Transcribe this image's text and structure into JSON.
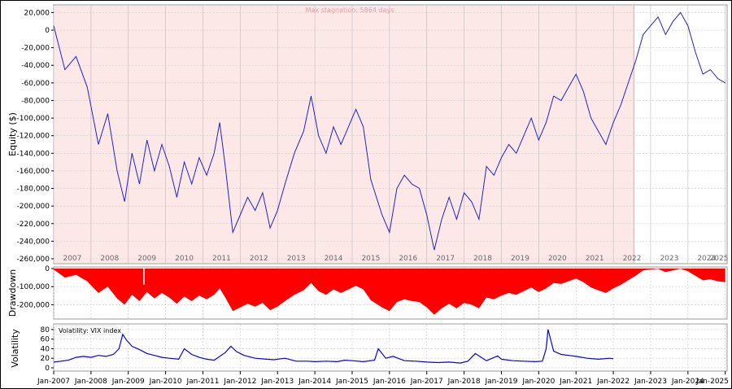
{
  "chart_data": [
    {
      "type": "line",
      "panel": "equity",
      "ylabel": "Equity ($)",
      "ylim": [
        -260000,
        25000
      ],
      "yticks": [
        "20,000",
        "0",
        "-20,000",
        "-40,000",
        "-60,000",
        "-80,000",
        "-100,000",
        "-120,000",
        "-140,000",
        "-160,000",
        "-180,000",
        "-200,000",
        "-220,000",
        "-240,000",
        "-260,000"
      ],
      "ytick_values": [
        20000,
        0,
        -20000,
        -40000,
        -60000,
        -80000,
        -100000,
        -120000,
        -140000,
        -160000,
        -180000,
        -200000,
        -220000,
        -240000,
        -260000
      ],
      "year_labels": [
        "2007",
        "2008",
        "2009",
        "2010",
        "2011",
        "2012",
        "2013",
        "2014",
        "2015",
        "2016",
        "2017",
        "2018",
        "2019",
        "2020",
        "2021",
        "2022",
        "2023",
        "2024",
        "2025"
      ],
      "annotation": "Max stagnation: 5864 days",
      "stagnation_range": [
        2007.0,
        2022.55
      ],
      "stagnation_color": "#fde8e8",
      "line_color": "#2222cc",
      "x": [
        2007.0,
        2007.3,
        2007.6,
        2007.9,
        2008.2,
        2008.45,
        2008.7,
        2008.9,
        2009.1,
        2009.3,
        2009.5,
        2009.7,
        2009.9,
        2010.1,
        2010.3,
        2010.5,
        2010.7,
        2010.9,
        2011.1,
        2011.3,
        2011.45,
        2011.6,
        2011.8,
        2012.0,
        2012.2,
        2012.4,
        2012.6,
        2012.8,
        2013.0,
        2013.2,
        2013.45,
        2013.7,
        2013.9,
        2014.1,
        2014.3,
        2014.5,
        2014.7,
        2014.9,
        2015.1,
        2015.3,
        2015.5,
        2015.8,
        2016.0,
        2016.2,
        2016.4,
        2016.6,
        2016.8,
        2017.0,
        2017.2,
        2017.4,
        2017.6,
        2017.8,
        2018.0,
        2018.2,
        2018.4,
        2018.6,
        2018.8,
        2019.0,
        2019.2,
        2019.4,
        2019.6,
        2019.8,
        2020.0,
        2020.2,
        2020.4,
        2020.6,
        2020.8,
        2021.0,
        2021.2,
        2021.4,
        2021.6,
        2021.8,
        2022.0,
        2022.2,
        2022.4,
        2022.6,
        2022.8,
        2023.0,
        2023.2,
        2023.4,
        2023.6,
        2023.8,
        2024.0,
        2024.2,
        2024.4,
        2024.6,
        2024.8,
        2025.0
      ],
      "y": [
        5000,
        -45000,
        -30000,
        -65000,
        -130000,
        -95000,
        -160000,
        -195000,
        -140000,
        -175000,
        -125000,
        -160000,
        -130000,
        -155000,
        -190000,
        -150000,
        -175000,
        -145000,
        -165000,
        -140000,
        -105000,
        -155000,
        -230000,
        -210000,
        -190000,
        -205000,
        -185000,
        -225000,
        -205000,
        -175000,
        -140000,
        -115000,
        -75000,
        -120000,
        -140000,
        -110000,
        -130000,
        -110000,
        -90000,
        -110000,
        -170000,
        -210000,
        -230000,
        -180000,
        -165000,
        -175000,
        -180000,
        -210000,
        -250000,
        -215000,
        -190000,
        -215000,
        -185000,
        -195000,
        -215000,
        -155000,
        -165000,
        -145000,
        -130000,
        -140000,
        -120000,
        -100000,
        -125000,
        -105000,
        -75000,
        -80000,
        -65000,
        -50000,
        -70000,
        -100000,
        -115000,
        -130000,
        -105000,
        -85000,
        -60000,
        -35000,
        -5000,
        5000,
        15000,
        -5000,
        10000,
        20000,
        5000,
        -25000,
        -50000,
        -45000,
        -55000,
        -60000
      ]
    },
    {
      "type": "area",
      "panel": "drawdown",
      "ylabel": "Drawdown",
      "ylim": [
        -270000,
        0
      ],
      "yticks": [
        "0",
        "-100,000",
        "-200,000"
      ],
      "ytick_values": [
        0,
        -100000,
        -200000
      ],
      "fill_color": "#ff0000",
      "x": [
        2007.0,
        2007.3,
        2007.6,
        2007.9,
        2008.2,
        2008.45,
        2008.7,
        2008.9,
        2009.1,
        2009.3,
        2009.5,
        2009.7,
        2009.9,
        2010.1,
        2010.3,
        2010.5,
        2010.7,
        2010.9,
        2011.1,
        2011.3,
        2011.45,
        2011.6,
        2011.8,
        2012.0,
        2012.2,
        2012.4,
        2012.6,
        2012.8,
        2013.0,
        2013.2,
        2013.45,
        2013.7,
        2013.9,
        2014.1,
        2014.3,
        2014.5,
        2014.7,
        2014.9,
        2015.1,
        2015.3,
        2015.5,
        2015.8,
        2016.0,
        2016.2,
        2016.4,
        2016.6,
        2016.8,
        2017.0,
        2017.2,
        2017.4,
        2017.6,
        2017.8,
        2018.0,
        2018.2,
        2018.4,
        2018.6,
        2018.8,
        2019.0,
        2019.2,
        2019.4,
        2019.6,
        2019.8,
        2020.0,
        2020.2,
        2020.4,
        2020.6,
        2020.8,
        2021.0,
        2021.2,
        2021.4,
        2021.6,
        2021.8,
        2022.0,
        2022.2,
        2022.4,
        2022.6,
        2022.8,
        2023.0,
        2023.2,
        2023.4,
        2023.6,
        2023.8,
        2024.0,
        2024.2,
        2024.4,
        2024.6,
        2024.8,
        2025.0
      ],
      "y": [
        -5000,
        -50000,
        -35000,
        -70000,
        -135000,
        -100000,
        -165000,
        -200000,
        -145000,
        -180000,
        -130000,
        -165000,
        -135000,
        -160000,
        -195000,
        -155000,
        -180000,
        -150000,
        -170000,
        -145000,
        -110000,
        -160000,
        -235000,
        -215000,
        -195000,
        -210000,
        -190000,
        -230000,
        -210000,
        -180000,
        -145000,
        -120000,
        -80000,
        -125000,
        -145000,
        -115000,
        -135000,
        -115000,
        -95000,
        -115000,
        -175000,
        -215000,
        -235000,
        -185000,
        -170000,
        -180000,
        -185000,
        -215000,
        -255000,
        -220000,
        -195000,
        -220000,
        -190000,
        -200000,
        -220000,
        -160000,
        -170000,
        -150000,
        -135000,
        -145000,
        -125000,
        -105000,
        -130000,
        -110000,
        -80000,
        -85000,
        -70000,
        -55000,
        -75000,
        -105000,
        -120000,
        -135000,
        -110000,
        -90000,
        -65000,
        -40000,
        -10000,
        -5000,
        -2000,
        -20000,
        -10000,
        -1000,
        -15000,
        -40000,
        -65000,
        -60000,
        -70000,
        -75000
      ]
    },
    {
      "type": "line",
      "panel": "volatility",
      "ylabel": "Volatility",
      "legend": "Volatility: VIX index",
      "ylim": [
        0,
        85
      ],
      "yticks": [
        "80",
        "60",
        "40",
        "20",
        "0"
      ],
      "ytick_values": [
        80,
        60,
        40,
        20,
        0
      ],
      "line_color": "#0000ee",
      "xticks": [
        "Jan-2007",
        "Jan-2008",
        "Jan-2009",
        "Jan-2010",
        "Jan-2011",
        "Jan-2012",
        "Jan-2013",
        "Jan-2014",
        "Jan-2015",
        "Jan-2016",
        "Jan-2017",
        "Jan-2018",
        "Jan-2019",
        "Jan-2020",
        "Jan-2021",
        "Jan-2022",
        "Jan-2023",
        "Jan-2024",
        "Jan-2025"
      ],
      "x": [
        2007.0,
        2007.2,
        2007.4,
        2007.6,
        2007.8,
        2008.0,
        2008.2,
        2008.4,
        2008.6,
        2008.75,
        2008.85,
        2008.95,
        2009.1,
        2009.3,
        2009.5,
        2009.7,
        2009.9,
        2010.1,
        2010.35,
        2010.5,
        2010.7,
        2010.9,
        2011.1,
        2011.3,
        2011.6,
        2011.75,
        2011.9,
        2012.1,
        2012.4,
        2012.7,
        2012.9,
        2013.2,
        2013.5,
        2013.8,
        2014.0,
        2014.3,
        2014.6,
        2014.8,
        2015.0,
        2015.3,
        2015.6,
        2015.7,
        2015.9,
        2016.1,
        2016.4,
        2016.7,
        2017.0,
        2017.3,
        2017.6,
        2017.9,
        2018.1,
        2018.3,
        2018.6,
        2018.9,
        2019.0,
        2019.3,
        2019.6,
        2019.9,
        2020.1,
        2020.2,
        2020.25,
        2020.4,
        2020.6,
        2020.8,
        2021.0,
        2021.3,
        2021.6,
        2021.9,
        2022.0
      ],
      "y": [
        12,
        14,
        16,
        22,
        24,
        22,
        26,
        24,
        28,
        40,
        70,
        58,
        45,
        38,
        30,
        26,
        22,
        20,
        18,
        40,
        28,
        22,
        18,
        16,
        32,
        45,
        34,
        26,
        20,
        18,
        17,
        20,
        14,
        14,
        13,
        14,
        13,
        16,
        15,
        13,
        16,
        40,
        20,
        24,
        15,
        14,
        12,
        11,
        12,
        10,
        14,
        30,
        15,
        25,
        18,
        15,
        14,
        13,
        14,
        40,
        80,
        35,
        28,
        26,
        24,
        20,
        18,
        20,
        19
      ]
    }
  ]
}
